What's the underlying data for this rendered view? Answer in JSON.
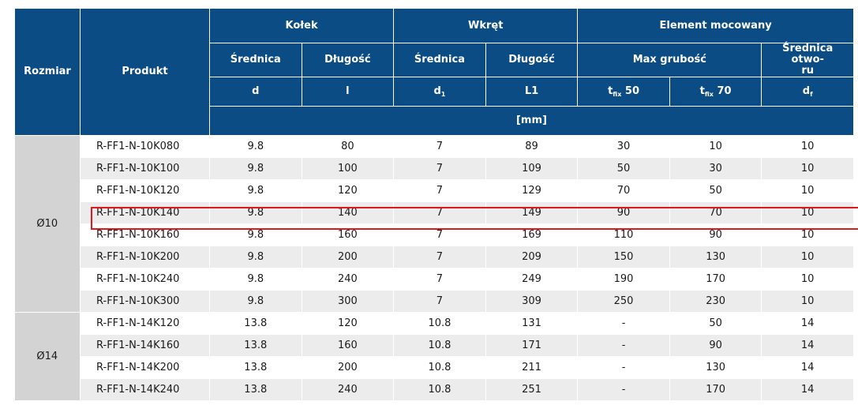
{
  "headers": {
    "rozmiar": "Rozmiar",
    "produkt": "Produkt",
    "kolek": "Kołek",
    "wkret": "Wkręt",
    "element": "Element mocowany",
    "srednica": "Średnica",
    "dlugosc": "Długość",
    "max_grubosc": "Max grubość",
    "srednica_otworu": "Średnica otwo-ru",
    "sym_d": "d",
    "sym_l": "l",
    "sym_d1_base": "d",
    "sym_d1_sub": "1",
    "sym_L1": "L1",
    "sym_t50_base": "t",
    "sym_t50_sub": "fix",
    "sym_t50_val": " 50",
    "sym_t70_base": "t",
    "sym_t70_sub": "fix",
    "sym_t70_val": " 70",
    "sym_df_base": "d",
    "sym_df_sub": "f",
    "unit": "[mm]"
  },
  "groups": [
    {
      "size": "Ø10",
      "rows": [
        [
          "R-FF1-N-10K080",
          "9.8",
          "80",
          "7",
          "89",
          "30",
          "10",
          "10"
        ],
        [
          "R-FF1-N-10K100",
          "9.8",
          "100",
          "7",
          "109",
          "50",
          "30",
          "10"
        ],
        [
          "R-FF1-N-10K120",
          "9.8",
          "120",
          "7",
          "129",
          "70",
          "50",
          "10"
        ],
        [
          "R-FF1-N-10K140",
          "9.8",
          "140",
          "7",
          "149",
          "90",
          "70",
          "10"
        ],
        [
          "R-FF1-N-10K160",
          "9.8",
          "160",
          "7",
          "169",
          "110",
          "90",
          "10"
        ],
        [
          "R-FF1-N-10K200",
          "9.8",
          "200",
          "7",
          "209",
          "150",
          "130",
          "10"
        ],
        [
          "R-FF1-N-10K240",
          "9.8",
          "240",
          "7",
          "249",
          "190",
          "170",
          "10"
        ],
        [
          "R-FF1-N-10K300",
          "9.8",
          "300",
          "7",
          "309",
          "250",
          "230",
          "10"
        ]
      ]
    },
    {
      "size": "Ø14",
      "rows": [
        [
          "R-FF1-N-14K120",
          "13.8",
          "120",
          "10.8",
          "131",
          "-",
          "50",
          "14"
        ],
        [
          "R-FF1-N-14K160",
          "13.8",
          "160",
          "10.8",
          "171",
          "-",
          "90",
          "14"
        ],
        [
          "R-FF1-N-14K200",
          "13.8",
          "200",
          "10.8",
          "211",
          "-",
          "130",
          "14"
        ],
        [
          "R-FF1-N-14K240",
          "13.8",
          "240",
          "10.8",
          "251",
          "-",
          "170",
          "14"
        ]
      ]
    }
  ],
  "highlight_color": "#e0191f",
  "header_color": "#0b4c85"
}
